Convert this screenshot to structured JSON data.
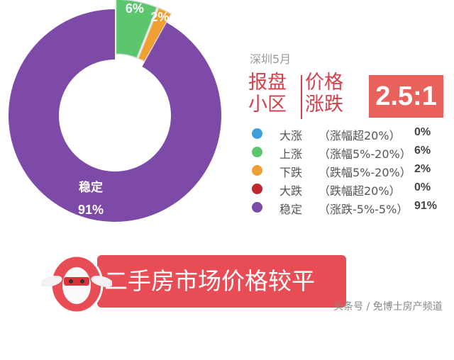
{
  "chart_data": {
    "type": "pie",
    "variant": "donut",
    "categories": [
      "大涨",
      "上涨",
      "下跌",
      "大跌",
      "稳定"
    ],
    "values": [
      0,
      6,
      2,
      0,
      91
    ],
    "colors": [
      "#3b9fe0",
      "#5cc66f",
      "#f0a030",
      "#c0272d",
      "#7e4aa8"
    ],
    "exploded": [
      "上涨",
      "下跌"
    ],
    "slice_labels": [
      {
        "category": "上涨",
        "text": "6%"
      },
      {
        "category": "下跌",
        "text": "2%"
      },
      {
        "category": "稳定",
        "name": "稳定",
        "text": "91%"
      }
    ]
  },
  "subtitle": "深圳5月",
  "headline": {
    "left": [
      "报盘",
      "小区"
    ],
    "right": [
      "价格",
      "涨跌"
    ]
  },
  "ratio": "2.5:1",
  "legend": [
    {
      "name": "大涨",
      "range": "（涨幅超20%）",
      "value": "0%",
      "color": "#3b9fe0"
    },
    {
      "name": "上涨",
      "range": "（涨幅5%-20%）",
      "value": "6%",
      "color": "#5cc66f"
    },
    {
      "name": "下跌",
      "range": "（跌幅5%-20%）",
      "value": "2%",
      "color": "#f0a030"
    },
    {
      "name": "大跌",
      "range": "（跌幅超20%）",
      "value": "0%",
      "color": "#c0272d"
    },
    {
      "name": "稳定",
      "range": "（涨跌-5%-5%）",
      "value": "91%",
      "color": "#7e4aa8"
    }
  ],
  "banner": "二手房市场价格较平稳",
  "watermark": "头条号 / 免博士房产频道"
}
